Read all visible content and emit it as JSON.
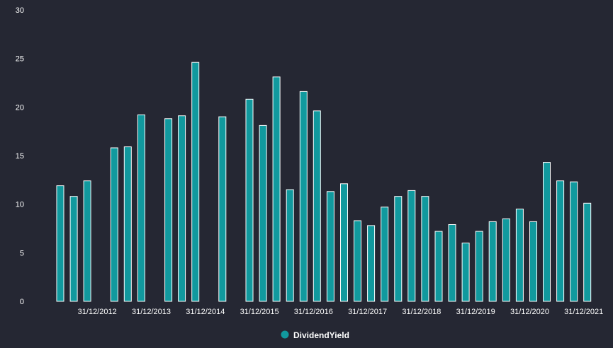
{
  "chart_data": {
    "type": "bar",
    "ylim": [
      0,
      30
    ],
    "y_ticks": [
      0,
      5,
      10,
      15,
      20,
      25,
      30
    ],
    "grid": false,
    "legend_position": "bottom-center",
    "x_tick_labels": [
      {
        "label": "31/12/2012",
        "after_slot": 3
      },
      {
        "label": "31/12/2013",
        "after_slot": 7
      },
      {
        "label": "31/12/2014",
        "after_slot": 11
      },
      {
        "label": "31/12/2015",
        "after_slot": 15
      },
      {
        "label": "31/12/2016",
        "after_slot": 19
      },
      {
        "label": "31/12/2017",
        "after_slot": 23
      },
      {
        "label": "31/12/2018",
        "after_slot": 27
      },
      {
        "label": "31/12/2019",
        "after_slot": 31
      },
      {
        "label": "31/12/2020",
        "after_slot": 35
      },
      {
        "label": "31/12/2021",
        "after_slot": 39
      }
    ],
    "series": [
      {
        "name": "DividendYield",
        "color": "#11999e",
        "values": [
          11.9,
          10.8,
          12.4,
          null,
          15.8,
          15.9,
          19.2,
          null,
          18.8,
          19.1,
          24.6,
          null,
          19.0,
          null,
          20.8,
          18.1,
          23.1,
          11.5,
          21.6,
          19.6,
          11.3,
          12.1,
          8.3,
          7.8,
          9.7,
          10.8,
          11.4,
          10.8,
          7.2,
          7.9,
          6.0,
          7.2,
          8.2,
          8.5,
          9.5,
          8.2,
          14.3,
          12.4,
          12.3,
          10.1
        ]
      }
    ]
  }
}
